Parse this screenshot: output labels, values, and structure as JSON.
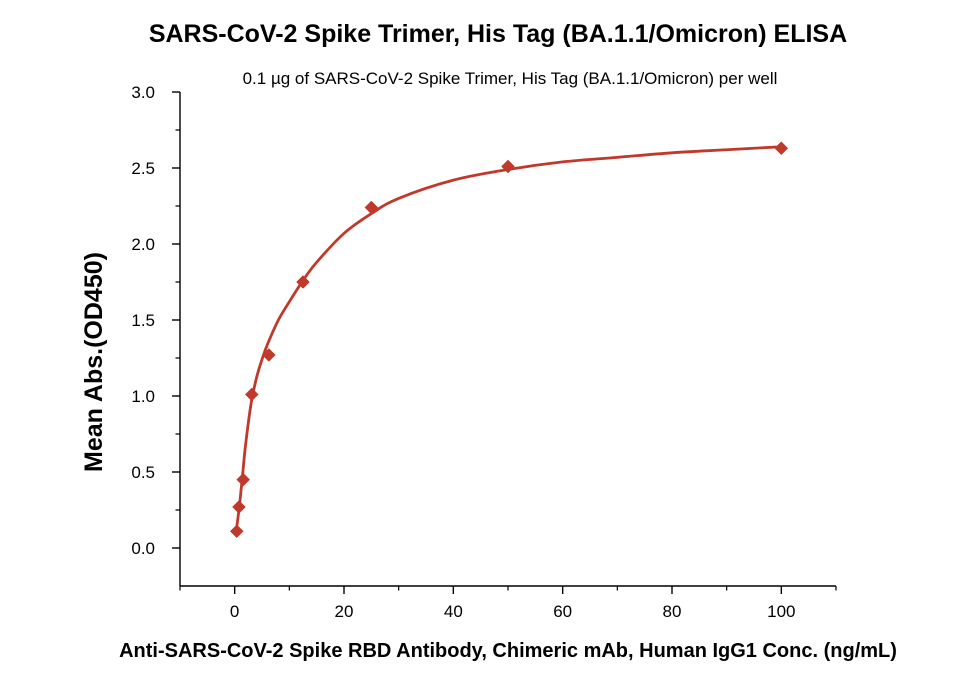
{
  "chart_data": {
    "type": "scatter",
    "title": "SARS-CoV-2 Spike Trimer, His Tag (BA.1.1/Omicron) ELISA",
    "subtitle": "0.1 µg of SARS-CoV-2 Spike Trimer, His Tag (BA.1.1/Omicron) per well",
    "xlabel": "Anti-SARS-CoV-2 Spike RBD Antibody, Chimeric mAb, Human IgG1 Conc. (ng/mL)",
    "ylabel": "Mean Abs.(OD450)",
    "xlim": [
      -10,
      110
    ],
    "ylim": [
      -0.25,
      3.0
    ],
    "xticks": [
      0,
      20,
      40,
      60,
      80,
      100
    ],
    "xtick_labels": [
      "0",
      "20",
      "40",
      "60",
      "80",
      "100"
    ],
    "yticks": [
      0.0,
      0.5,
      1.0,
      1.5,
      2.0,
      2.5,
      3.0
    ],
    "ytick_labels": [
      "0.0",
      "0.5",
      "1.0",
      "1.5",
      "2.0",
      "2.5",
      "3.0"
    ],
    "grid": false,
    "series": [
      {
        "marker": "diamond",
        "color": "#c0392b",
        "x": [
          0.39,
          0.78,
          1.56,
          3.13,
          6.25,
          12.5,
          25,
          50,
          100
        ],
        "y": [
          0.11,
          0.27,
          0.45,
          1.01,
          1.27,
          1.75,
          2.24,
          2.51,
          2.63
        ]
      }
    ],
    "fit": {
      "type": "curve",
      "color": "#c0392b",
      "x": [
        0.2,
        0.5,
        1,
        1.5,
        2,
        3,
        4,
        5,
        6,
        8,
        10,
        12.5,
        15,
        20,
        25,
        30,
        40,
        50,
        60,
        70,
        80,
        90,
        100
      ],
      "y": [
        0.1,
        0.17,
        0.32,
        0.5,
        0.68,
        0.95,
        1.12,
        1.24,
        1.34,
        1.5,
        1.62,
        1.76,
        1.88,
        2.07,
        2.2,
        2.3,
        2.42,
        2.49,
        2.54,
        2.57,
        2.6,
        2.62,
        2.64
      ]
    }
  }
}
